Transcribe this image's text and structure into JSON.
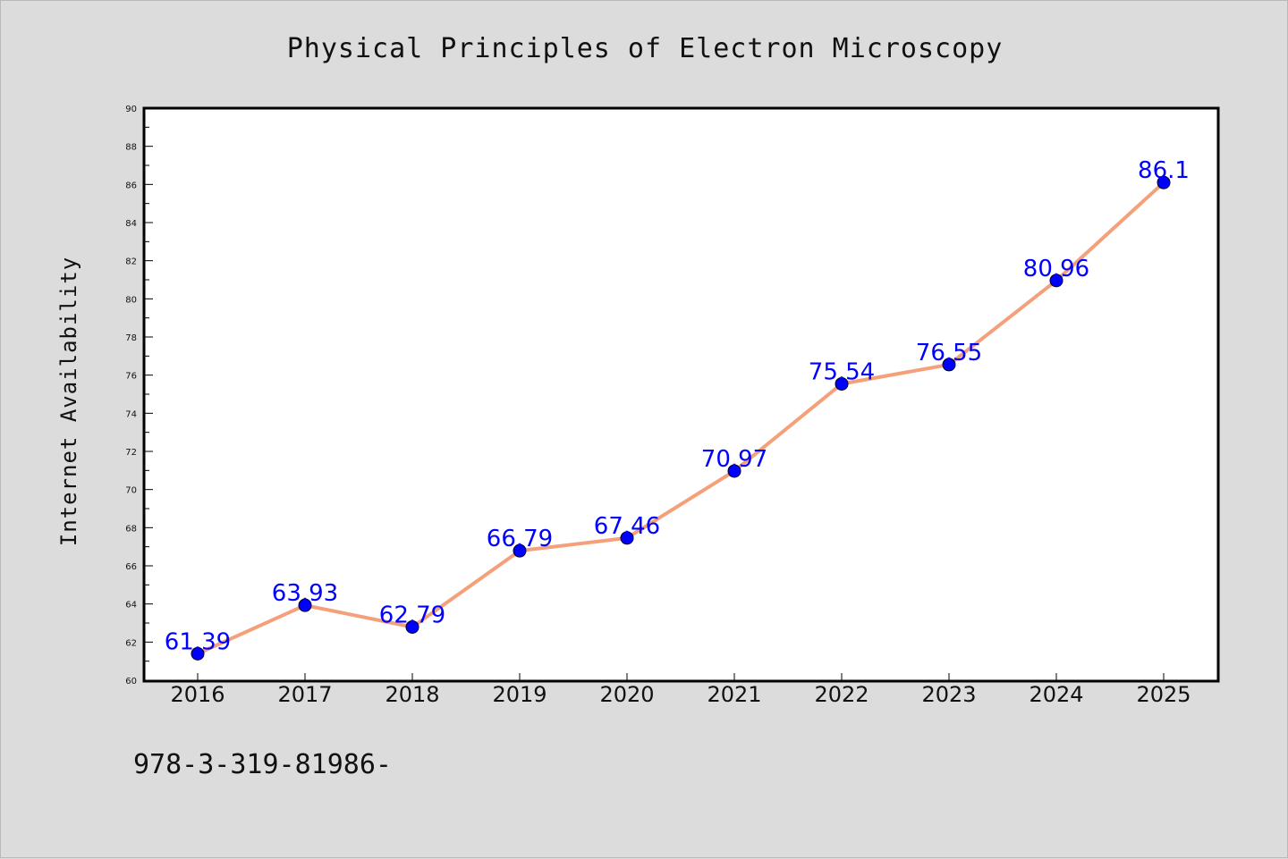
{
  "chart_data": {
    "type": "line",
    "title": "Physical Principles of Electron Microscopy",
    "xlabel": "",
    "ylabel": "Internet Availability",
    "x": [
      "2016",
      "2017",
      "2018",
      "2019",
      "2020",
      "2021",
      "2022",
      "2023",
      "2024",
      "2025"
    ],
    "series": [
      {
        "values": [
          61.39,
          63.93,
          62.79,
          66.79,
          67.46,
          70.97,
          75.54,
          76.55,
          80.96,
          86.1
        ],
        "labels": [
          "61.39",
          "63.93",
          "62.79",
          "66.79",
          "67.46",
          "70.97",
          "75.54",
          "76.55",
          "80.96",
          "86.1"
        ]
      }
    ],
    "ylim": [
      60,
      90
    ],
    "yticks": [
      "60",
      "62",
      "64",
      "66",
      "68",
      "70",
      "72",
      "74",
      "76",
      "78",
      "80",
      "82",
      "84",
      "86",
      "88",
      "90"
    ],
    "grid": false,
    "legend": "none",
    "colors": {
      "line": "#f4a07a",
      "marker": "#0000ff",
      "data_label": "#0000ff",
      "background": "#dcdcdc",
      "plot_background": "#ffffff"
    }
  },
  "footer_text": "978-3-319-81986-"
}
